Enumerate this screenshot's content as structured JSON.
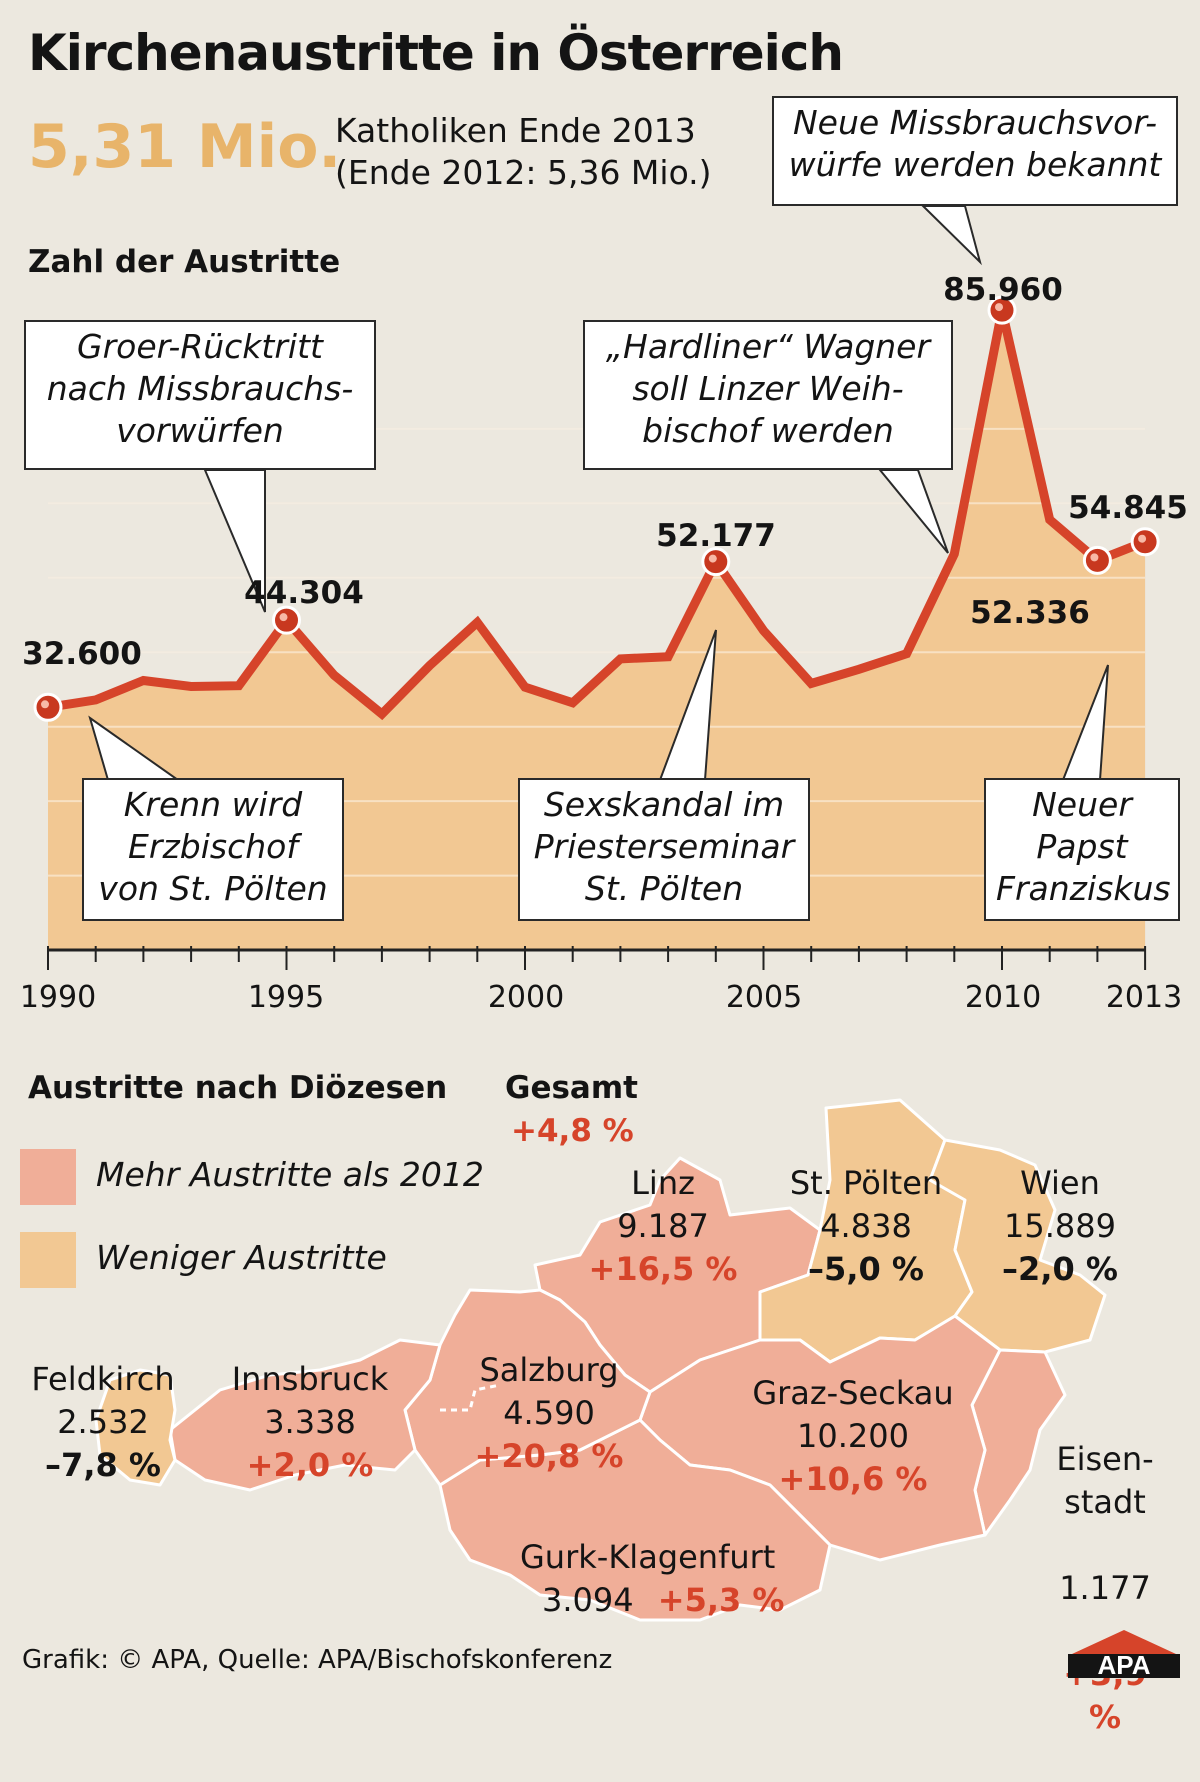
{
  "title": "Kirchenaustritte in Österreich",
  "highlight": {
    "value": "5,31 Mio.",
    "text": "Katholiken Ende 2013\n(Ende 2012: 5,36 Mio.)"
  },
  "chart_title": "Zahl der Austritte",
  "chart_data": {
    "type": "area",
    "title": "Zahl der Austritte",
    "x": [
      1990,
      1991,
      1992,
      1993,
      1994,
      1995,
      1996,
      1997,
      1998,
      1999,
      2000,
      2001,
      2002,
      2003,
      2004,
      2005,
      2006,
      2007,
      2008,
      2009,
      2010,
      2011,
      2012,
      2013
    ],
    "values": [
      32600,
      33600,
      36200,
      35400,
      35500,
      44304,
      36900,
      31700,
      38200,
      44000,
      35300,
      33200,
      39100,
      39400,
      52177,
      42900,
      35800,
      37700,
      39800,
      53200,
      85960,
      57800,
      52336,
      54845
    ],
    "tick_labels": [
      "1990",
      "1995",
      "2000",
      "2005",
      "2010",
      "2013"
    ],
    "ylim": [
      0,
      90000
    ],
    "grid": true,
    "point_labels": [
      {
        "year": 1990,
        "text": "32.600"
      },
      {
        "year": 1995,
        "text": "44.304"
      },
      {
        "year": 2004,
        "text": "52.177"
      },
      {
        "year": 2010,
        "text": "85.960"
      },
      {
        "year": 2012,
        "text": "52.336"
      },
      {
        "year": 2013,
        "text": "54.845"
      }
    ],
    "annotations": [
      {
        "year": 1990,
        "text": "Krenn wird\nErzbischof\nvon St. Pölten"
      },
      {
        "year": 1995,
        "text": "Groer-Rücktritt\nnach Missbrauchs-\nvorwürfen"
      },
      {
        "year": 2004,
        "text": "Sexskandal im\nPriesterseminar\nSt. Pölten"
      },
      {
        "year": 2009,
        "text": "„Hardliner“ Wagner\nsoll Linzer Weih-\nbischof werden"
      },
      {
        "year": 2010,
        "text": "Neue Missbrauchsvor-\nwürfe werden bekannt"
      },
      {
        "year": 2013,
        "text": "Neuer\nPapst\nFranziskus"
      }
    ]
  },
  "map": {
    "title": "Austritte nach Diözesen",
    "total_label": "Gesamt",
    "total_change": "+4,8 %",
    "legend": [
      {
        "label": "Mehr Austritte als 2012",
        "color": "#f0ae98"
      },
      {
        "label": "Weniger Austritte",
        "color": "#f2c893"
      }
    ],
    "dioceses": [
      {
        "name": "Linz",
        "value": "9.187",
        "change": "+16,5 %",
        "trend": "up"
      },
      {
        "name": "St. Pölten",
        "value": "4.838",
        "change": "–5,0 %",
        "trend": "down"
      },
      {
        "name": "Wien",
        "value": "15.889",
        "change": "–2,0 %",
        "trend": "down"
      },
      {
        "name": "Feldkirch",
        "value": "2.532",
        "change": "–7,8 %",
        "trend": "down"
      },
      {
        "name": "Innsbruck",
        "value": "3.338",
        "change": "+2,0 %",
        "trend": "up"
      },
      {
        "name": "Salzburg",
        "value": "4.590",
        "change": "+20,8 %",
        "trend": "up"
      },
      {
        "name": "Graz-Seckau",
        "value": "10.200",
        "change": "+10,6 %",
        "trend": "up"
      },
      {
        "name": "Eisen-\nstadt",
        "value": "1.177",
        "change": "+3,9 %",
        "trend": "up"
      },
      {
        "name": "Gurk-Klagenfurt",
        "value": "3.094",
        "change": "+5,3 %",
        "trend": "up"
      }
    ]
  },
  "footer": "Grafik: © APA, Quelle: APA/Bischofskonferenz",
  "logo": "APA",
  "colors": {
    "line": "#d6442a",
    "area": "#f2c893",
    "up": "#d6442a",
    "down": "#141414",
    "map_up": "#f0ae98",
    "map_down": "#f2c893"
  }
}
